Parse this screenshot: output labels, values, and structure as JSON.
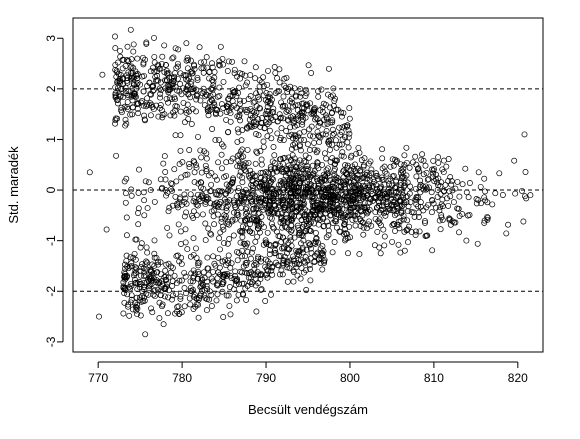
{
  "chart_data": {
    "type": "scatter",
    "title": "",
    "xlabel": "Becsült vendégszám",
    "ylabel": "Std. maradék",
    "xlim": [
      767,
      823
    ],
    "ylim": [
      -3.2,
      3.4
    ],
    "xticks": [
      770,
      780,
      790,
      800,
      810,
      820
    ],
    "yticks": [
      -3,
      -2,
      -1,
      0,
      1,
      2,
      3
    ],
    "xtick_labels": [
      "770",
      "780",
      "790",
      "800",
      "810",
      "820"
    ],
    "ytick_labels": [
      "-3",
      "-2",
      "-1",
      "0",
      "1",
      "2",
      "3"
    ],
    "reference_lines": [
      {
        "y": 2,
        "style": "dashed"
      },
      {
        "y": 0,
        "style": "dashed"
      },
      {
        "y": -2,
        "style": "dashed"
      }
    ],
    "grid": false,
    "legend": "none",
    "marker": "open-circle",
    "marker_color": "#000000",
    "notable_points": [
      {
        "x": 780.1,
        "y": 3.38
      },
      {
        "x": 769.0,
        "y": 0.35
      },
      {
        "x": 770.1,
        "y": -2.5
      },
      {
        "x": 771.0,
        "y": -0.78
      },
      {
        "x": 770.5,
        "y": 2.28
      },
      {
        "x": 772.6,
        "y": 2.75
      },
      {
        "x": 775.6,
        "y": -2.85
      },
      {
        "x": 777.8,
        "y": -2.65
      },
      {
        "x": 820.8,
        "y": 1.1
      },
      {
        "x": 821.5,
        "y": -0.1
      }
    ],
    "clusters": [
      {
        "region": "upper band",
        "x_range": [
          772,
          800
        ],
        "y_center": 1.9,
        "y_spread": 0.55,
        "trend_note": "decreases toward ~1 as x grows"
      },
      {
        "region": "middle band",
        "x_range": [
          773,
          821
        ],
        "y_center": 0.0,
        "y_spread": 0.5,
        "trend_note": "densest between 795 and 815"
      },
      {
        "region": "lower band",
        "x_range": [
          773,
          795
        ],
        "y_center": -1.8,
        "y_spread": 0.4,
        "trend_note": "rises toward ~-1 as x grows"
      }
    ]
  }
}
